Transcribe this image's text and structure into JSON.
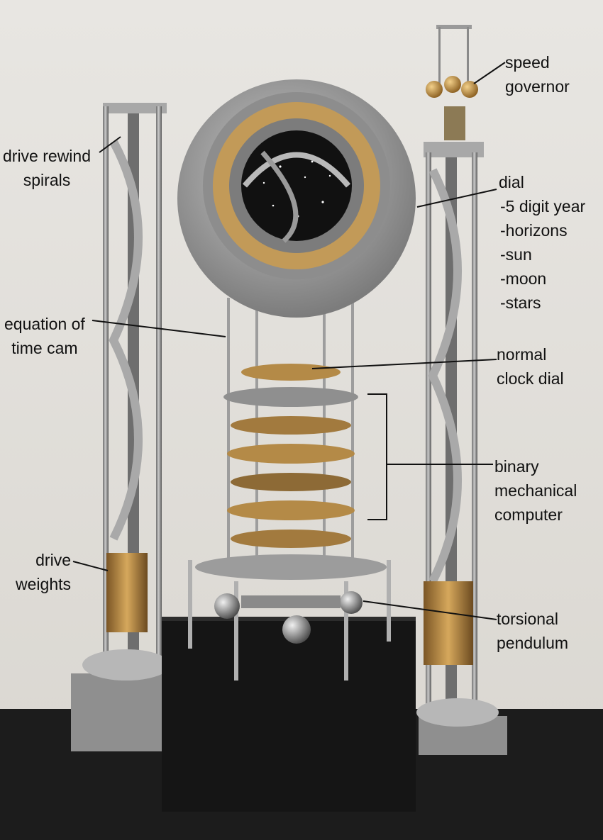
{
  "photo": {
    "subject": "10,000 year clock prototype with labeled parts",
    "colors": {
      "background": "#e4e1dc",
      "steel": "#9a9a9a",
      "brass": "#b78a45",
      "base": "#202020",
      "label": "#111111"
    }
  },
  "labels": {
    "drive_rewind_spirals": {
      "lines": [
        "drive rewind",
        "spirals"
      ]
    },
    "equation_of_time_cam": {
      "lines": [
        "equation of",
        "time cam"
      ]
    },
    "drive_weights": {
      "lines": [
        "drive",
        "weights"
      ]
    },
    "speed_governor": {
      "lines": [
        "speed",
        "governor"
      ]
    },
    "dial": {
      "lines": [
        "dial",
        "-5 digit year",
        "-horizons",
        "-sun",
        "-moon",
        "-stars"
      ]
    },
    "normal_clock_dial": {
      "lines": [
        "normal",
        "clock dial"
      ]
    },
    "binary_mechanical_computer": {
      "lines": [
        "binary",
        "mechanical",
        "computer"
      ]
    },
    "torsional_pendulum": {
      "lines": [
        "torsional",
        "pendulum"
      ]
    }
  }
}
